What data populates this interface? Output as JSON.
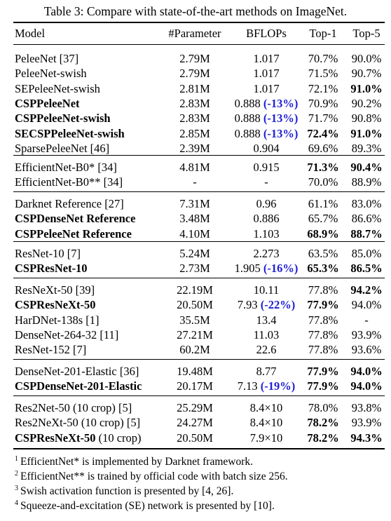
{
  "caption": "Table 3: Compare with state-of-the-art methods on ImageNet.",
  "headers": {
    "model": "Model",
    "params": "#Parameter",
    "flops": "BFLOPs",
    "top1": "Top-1",
    "top5": "Top-5"
  },
  "groups": [
    [
      {
        "model": "PeleeNet [37]",
        "params": "2.79M",
        "flops": "1.017",
        "top1": "70.7%",
        "top5": "90.0%"
      },
      {
        "model": "PeleeNet-swish",
        "params": "2.79M",
        "flops": "1.017",
        "top1": "71.5%",
        "top5": "90.7%"
      },
      {
        "model": "SEPeleeNet-swish",
        "params": "2.81M",
        "flops": "1.017",
        "top1": "72.1%",
        "top5": "91.0%",
        "top5_bold": true
      },
      {
        "model": "CSPPeleeNet",
        "model_bold": true,
        "params": "2.83M",
        "flops": "0.888",
        "flops_delta": "(-13%)",
        "top1": "70.9%",
        "top5": "90.2%"
      },
      {
        "model": "CSPPeleeNet-swish",
        "model_bold": true,
        "params": "2.83M",
        "flops": "0.888",
        "flops_delta": "(-13%)",
        "top1": "71.7%",
        "top5": "90.8%"
      },
      {
        "model": "SECSPPeleeNet-swish",
        "model_bold": true,
        "params": "2.85M",
        "flops": "0.888",
        "flops_delta": "(-13%)",
        "top1": "72.4%",
        "top1_bold": true,
        "top5": "91.0%",
        "top5_bold": true
      },
      {
        "model": "SparsePeleeNet [46]",
        "params": "2.39M",
        "flops": "0.904",
        "top1": "69.6%",
        "top5": "89.3%"
      }
    ],
    [
      {
        "model": "EfficientNet-B0* [34]",
        "params": "4.81M",
        "flops": "0.915",
        "top1": "71.3%",
        "top1_bold": true,
        "top5": "90.4%",
        "top5_bold": true
      },
      {
        "model": "EfficientNet-B0** [34]",
        "params": "-",
        "flops": "-",
        "top1": "70.0%",
        "top5": "88.9%"
      }
    ],
    [
      {
        "model": "Darknet Reference [27]",
        "params": "7.31M",
        "flops": "0.96",
        "top1": "61.1%",
        "top5": "83.0%"
      },
      {
        "model": "CSPDenseNet Reference",
        "model_bold": true,
        "params": "3.48M",
        "flops": "0.886",
        "top1": "65.7%",
        "top5": "86.6%"
      },
      {
        "model": "CSPPeleeNet Reference",
        "model_bold": true,
        "params": "4.10M",
        "flops": "1.103",
        "top1": "68.9%",
        "top1_bold": true,
        "top5": "88.7%",
        "top5_bold": true
      }
    ],
    [
      {
        "model": "ResNet-10 [7]",
        "params": "5.24M",
        "flops": "2.273",
        "top1": "63.5%",
        "top5": "85.0%"
      },
      {
        "model": "CSPResNet-10",
        "model_bold": true,
        "params": "2.73M",
        "flops": "1.905",
        "flops_delta": "(-16%)",
        "top1": "65.3%",
        "top1_bold": true,
        "top5": "86.5%",
        "top5_bold": true
      }
    ],
    [
      {
        "model": "ResNeXt-50 [39]",
        "params": "22.19M",
        "flops": "10.11",
        "top1": "77.8%",
        "top5": "94.2%",
        "top5_bold": true
      },
      {
        "model": "CSPResNeXt-50",
        "model_bold": true,
        "params": "20.50M",
        "flops": "7.93",
        "flops_delta": "(-22%)",
        "top1": "77.9%",
        "top1_bold": true,
        "top5": "94.0%"
      },
      {
        "model": "HarDNet-138s [1]",
        "params": "35.5M",
        "flops": "13.4",
        "top1": "77.8%",
        "top5": "-"
      },
      {
        "model": "DenseNet-264-32 [11]",
        "params": "27.21M",
        "flops": "11.03",
        "top1": "77.8%",
        "top5": "93.9%"
      },
      {
        "model": "ResNet-152 [7]",
        "params": "60.2M",
        "flops": "22.6",
        "top1": "77.8%",
        "top5": "93.6%"
      }
    ],
    [
      {
        "model": "DenseNet-201-Elastic [36]",
        "params": "19.48M",
        "flops": "8.77",
        "top1": "77.9%",
        "top1_bold": true,
        "top5": "94.0%",
        "top5_bold": true
      },
      {
        "model": "CSPDenseNet-201-Elastic",
        "model_bold": true,
        "params": "20.17M",
        "flops": "7.13",
        "flops_delta": "(-19%)",
        "top1": "77.9%",
        "top1_bold": true,
        "top5": "94.0%",
        "top5_bold": true
      }
    ],
    [
      {
        "model": "Res2Net-50 (10 crop) [5]",
        "params": "25.29M",
        "flops": "8.4×10",
        "top1": "78.0%",
        "top5": "93.8%"
      },
      {
        "model": "Res2NeXt-50 (10 crop) [5]",
        "params": "24.27M",
        "flops": "8.4×10",
        "top1": "78.2%",
        "top1_bold": true,
        "top5": "93.9%"
      },
      {
        "model": "CSPResNeXt-50",
        "model_bold": true,
        "model_suffix": " (10 crop)",
        "params": "20.50M",
        "flops": "7.9×10",
        "top1": "78.2%",
        "top1_bold": true,
        "top5": "94.3%",
        "top5_bold": true
      }
    ]
  ],
  "footnotes": [
    {
      "mark": "1",
      "text": "EfficientNet* is implemented by Darknet framework."
    },
    {
      "mark": "2",
      "text": "EfficientNet** is trained by official code with batch size 256."
    },
    {
      "mark": "3",
      "text": "Swish activation function is presented by [4, 26]."
    },
    {
      "mark": "4",
      "text": "Squeeze-and-excitation (SE) network is presented by [10]."
    }
  ]
}
